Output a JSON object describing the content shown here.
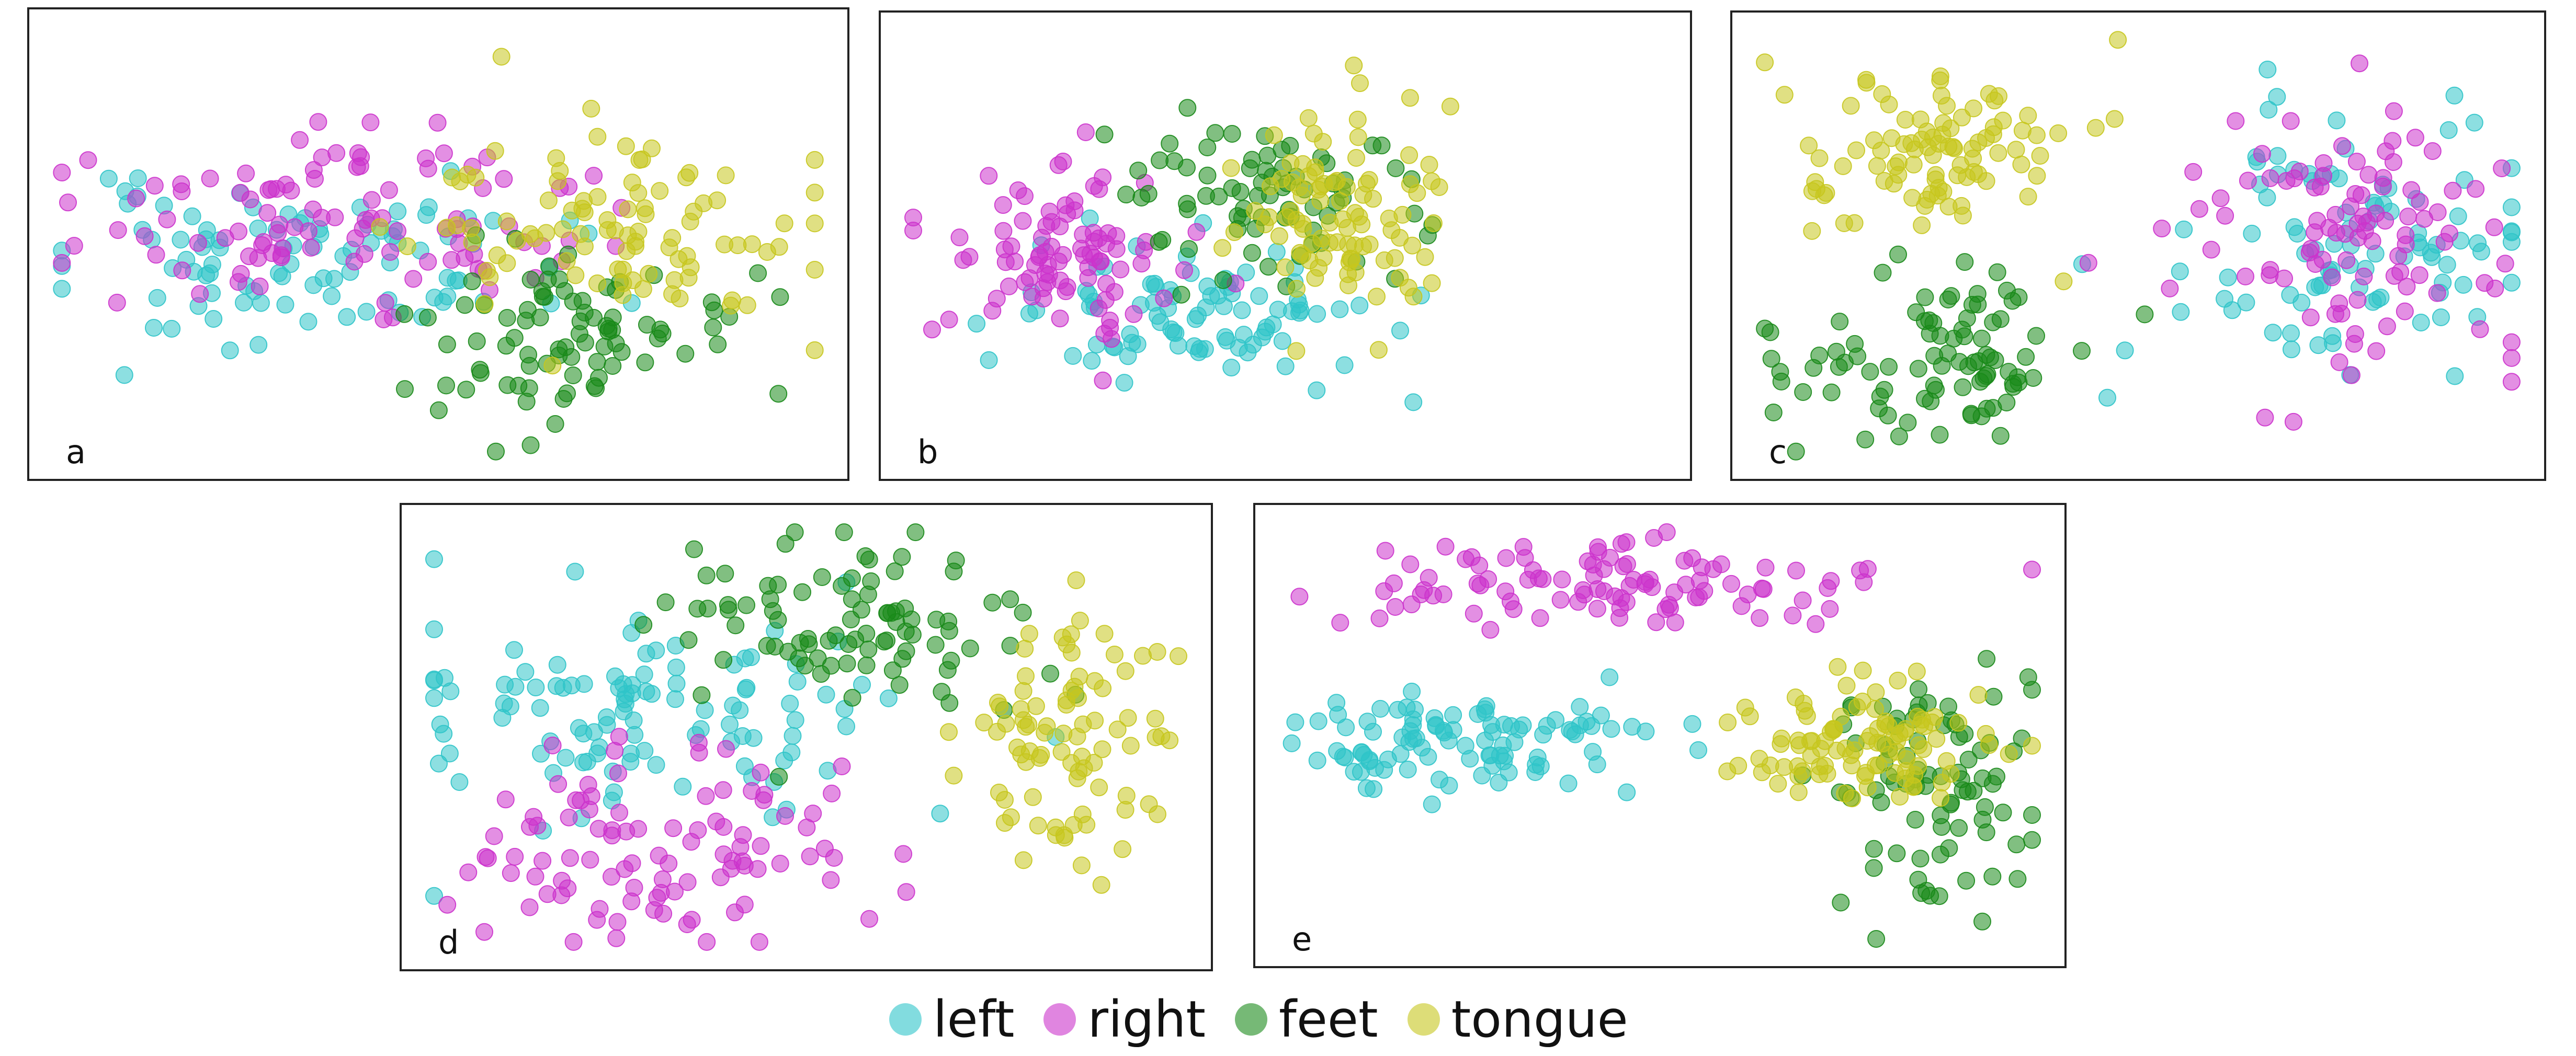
{
  "figure": {
    "legend": [
      {
        "name": "left",
        "color": "#2FC4C9"
      },
      {
        "name": "right",
        "color": "#CC33CC"
      },
      {
        "name": "feet",
        "color": "#1A8A1A"
      },
      {
        "name": "tongue",
        "color": "#C7C71E"
      }
    ]
  },
  "chart_data": [
    {
      "label": "a",
      "type": "scatter",
      "xlim": [
        0,
        10
      ],
      "ylim": [
        0,
        10
      ],
      "clusters": [
        {
          "series": "left",
          "n": 95,
          "cx": 3.2,
          "cy": 4.5,
          "sx": 1.6,
          "sy": 0.9,
          "seed": 11
        },
        {
          "series": "right",
          "n": 105,
          "cx": 3.6,
          "cy": 5.6,
          "sx": 1.6,
          "sy": 0.95,
          "seed": 12
        },
        {
          "series": "feet",
          "n": 85,
          "cx": 6.3,
          "cy": 2.9,
          "sx": 1.2,
          "sy": 1.05,
          "seed": 13
        },
        {
          "series": "tongue",
          "n": 95,
          "cx": 7.3,
          "cy": 5.4,
          "sx": 1.25,
          "sy": 1.2,
          "seed": 14
        }
      ]
    },
    {
      "label": "b",
      "type": "scatter",
      "xlim": [
        0,
        10
      ],
      "ylim": [
        0,
        10
      ],
      "clusters": [
        {
          "series": "left",
          "n": 90,
          "cx": 3.7,
          "cy": 3.4,
          "sx": 1.2,
          "sy": 0.85,
          "seed": 21
        },
        {
          "series": "right",
          "n": 90,
          "cx": 2.0,
          "cy": 5.0,
          "sx": 0.75,
          "sy": 0.95,
          "seed": 22
        },
        {
          "series": "feet",
          "n": 75,
          "cx": 4.6,
          "cy": 6.1,
          "sx": 1.05,
          "sy": 1.05,
          "seed": 23
        },
        {
          "series": "tongue",
          "n": 95,
          "cx": 5.6,
          "cy": 5.6,
          "sx": 0.7,
          "sy": 1.15,
          "seed": 24
        }
      ]
    },
    {
      "label": "c",
      "type": "scatter",
      "xlim": [
        0,
        10
      ],
      "ylim": [
        0,
        10
      ],
      "clusters": [
        {
          "series": "left",
          "n": 95,
          "cx": 7.7,
          "cy": 5.2,
          "sx": 1.2,
          "sy": 1.6,
          "seed": 31
        },
        {
          "series": "right",
          "n": 100,
          "cx": 7.8,
          "cy": 5.5,
          "sx": 1.1,
          "sy": 1.6,
          "seed": 32
        },
        {
          "series": "feet",
          "n": 90,
          "cx": 2.3,
          "cy": 2.3,
          "sx": 1.0,
          "sy": 0.95,
          "seed": 33
        },
        {
          "series": "tongue",
          "n": 95,
          "cx": 2.3,
          "cy": 7.3,
          "sx": 0.95,
          "sy": 1.1,
          "seed": 34
        }
      ]
    },
    {
      "label": "d",
      "type": "scatter",
      "xlim": [
        0,
        10
      ],
      "ylim": [
        0,
        10
      ],
      "clusters": [
        {
          "series": "left",
          "n": 110,
          "cx": 3.0,
          "cy": 5.6,
          "sx": 1.6,
          "sy": 1.3,
          "seed": 41
        },
        {
          "series": "right",
          "n": 100,
          "cx": 2.9,
          "cy": 2.4,
          "sx": 1.4,
          "sy": 1.2,
          "seed": 42
        },
        {
          "series": "feet",
          "n": 90,
          "cx": 5.6,
          "cy": 7.5,
          "sx": 1.3,
          "sy": 1.2,
          "seed": 43
        },
        {
          "series": "tongue",
          "n": 85,
          "cx": 8.3,
          "cy": 4.8,
          "sx": 0.75,
          "sy": 1.6,
          "seed": 44
        }
      ]
    },
    {
      "label": "e",
      "type": "scatter",
      "xlim": [
        0,
        10
      ],
      "ylim": [
        0,
        10
      ],
      "clusters": [
        {
          "series": "left",
          "n": 100,
          "cx": 2.3,
          "cy": 4.8,
          "sx": 1.1,
          "sy": 0.6,
          "seed": 51
        },
        {
          "series": "right",
          "n": 100,
          "cx": 4.8,
          "cy": 8.6,
          "sx": 1.6,
          "sy": 0.55,
          "seed": 52
        },
        {
          "series": "feet",
          "n": 85,
          "cx": 8.5,
          "cy": 3.6,
          "sx": 0.75,
          "sy": 1.4,
          "seed": 53
        },
        {
          "series": "tongue",
          "n": 100,
          "cx": 7.6,
          "cy": 4.7,
          "sx": 0.95,
          "sy": 0.7,
          "seed": 54
        }
      ]
    }
  ]
}
